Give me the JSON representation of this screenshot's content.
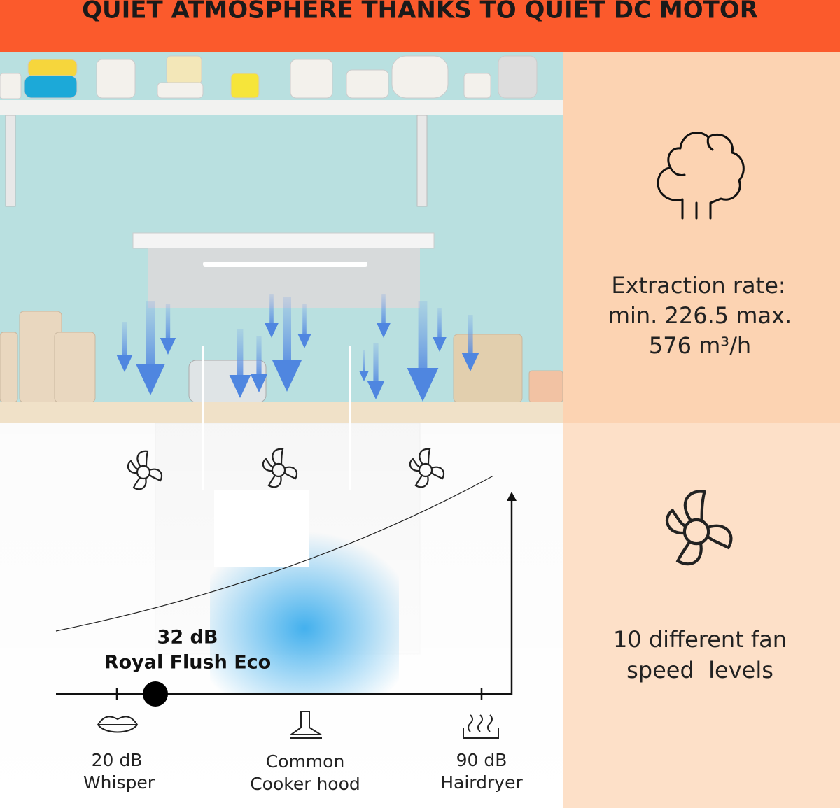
{
  "header": {
    "title": "QUIET ATMOSPHERE THANKS TO QUIET DC MOTOR"
  },
  "features": [
    {
      "lines": [
        "Extraction rate:",
        "min. 226.5 max.",
        "576 m³/h"
      ]
    },
    {
      "lines": [
        "10 different fan",
        "speed  levels"
      ]
    }
  ],
  "scale": {
    "highlight": {
      "level": "32 dB",
      "name": "Royal Flush Eco"
    },
    "markers": [
      {
        "lines": [
          "20 dB",
          "Whisper"
        ]
      },
      {
        "lines": [
          "Common",
          "Cooker hood"
        ]
      },
      {
        "lines": [
          "90 dB",
          "Hairdryer"
        ]
      }
    ]
  }
}
